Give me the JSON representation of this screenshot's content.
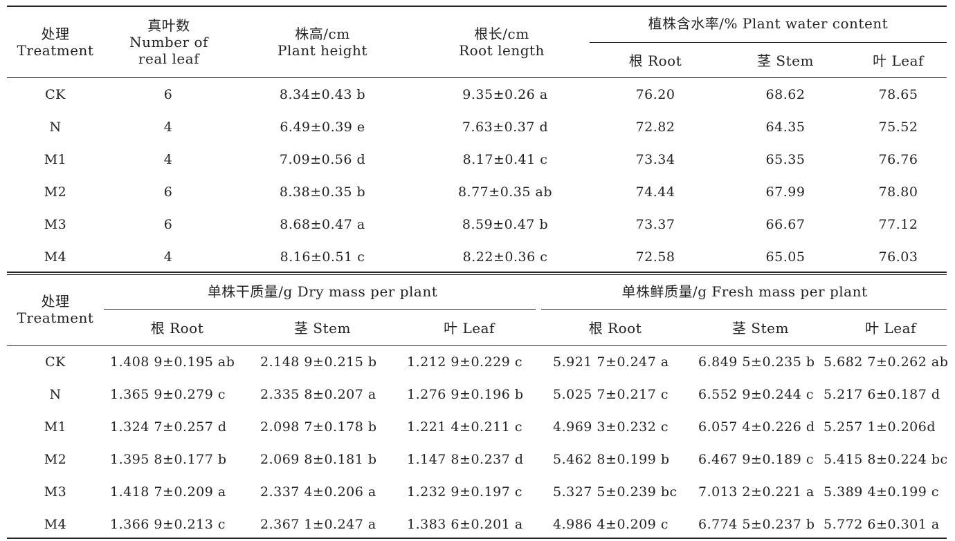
{
  "table1": {
    "headers": {
      "treatment": [
        "处理",
        "Treatment"
      ],
      "leaf_number": [
        "真叶数",
        "Number of",
        "real leaf"
      ],
      "plant_height": [
        "株高/cm",
        "Plant height"
      ],
      "root_length": [
        "根长/cm",
        "Root length"
      ],
      "water_content_group": "植株含水率/% Plant water content",
      "root": "根 Root",
      "stem": "茎 Stem",
      "leaf": "叶 Leaf"
    },
    "rows": [
      {
        "treatment": "CK",
        "leaf_number": "6",
        "plant_height": "8.34±0.43 b",
        "root_length": "9.35±0.26 a",
        "root": "76.20",
        "stem": "68.62",
        "leaf": "78.65"
      },
      {
        "treatment": "N",
        "leaf_number": "4",
        "plant_height": "6.49±0.39 e",
        "root_length": "7.63±0.37 d",
        "root": "72.82",
        "stem": "64.35",
        "leaf": "75.52"
      },
      {
        "treatment": "M1",
        "leaf_number": "4",
        "plant_height": "7.09±0.56 d",
        "root_length": "8.17±0.41 c",
        "root": "73.34",
        "stem": "65.35",
        "leaf": "76.76"
      },
      {
        "treatment": "M2",
        "leaf_number": "6",
        "plant_height": "8.38±0.35 b",
        "root_length": "8.77±0.35 ab",
        "root": "74.44",
        "stem": "67.99",
        "leaf": "78.80"
      },
      {
        "treatment": "M3",
        "leaf_number": "6",
        "plant_height": "8.68±0.47 a",
        "root_length": "8.59±0.47 b",
        "root": "73.37",
        "stem": "66.67",
        "leaf": "77.12"
      },
      {
        "treatment": "M4",
        "leaf_number": "4",
        "plant_height": "8.16±0.51 c",
        "root_length": "8.22±0.36 c",
        "root": "72.58",
        "stem": "65.05",
        "leaf": "76.03"
      }
    ]
  },
  "table2": {
    "headers": {
      "treatment": [
        "处理",
        "Treatment"
      ],
      "dry_group": "单株干质量/g Dry mass per plant",
      "fresh_group": "单株鲜质量/g Fresh mass per plant",
      "root": "根 Root",
      "stem": "茎 Stem",
      "leaf": "叶 Leaf"
    },
    "rows": [
      {
        "treatment": "CK",
        "dry_root": "1.408 9±0.195 ab",
        "dry_stem": "2.148 9±0.215 b",
        "dry_leaf": "1.212 9±0.229 c",
        "fresh_root": "5.921 7±0.247 a",
        "fresh_stem": "6.849 5±0.235 b",
        "fresh_leaf": "5.682 7±0.262 ab"
      },
      {
        "treatment": "N",
        "dry_root": "1.365 9±0.279 c",
        "dry_stem": "2.335 8±0.207 a",
        "dry_leaf": "1.276 9±0.196 b",
        "fresh_root": "5.025 7±0.217 c",
        "fresh_stem": "6.552 9±0.244 c",
        "fresh_leaf": "5.217 6±0.187 d"
      },
      {
        "treatment": "M1",
        "dry_root": "1.324 7±0.257 d",
        "dry_stem": "2.098 7±0.178 b",
        "dry_leaf": "1.221 4±0.211 c",
        "fresh_root": "4.969 3±0.232 c",
        "fresh_stem": "6.057 4±0.226 d",
        "fresh_leaf": "5.257 1±0.206d"
      },
      {
        "treatment": "M2",
        "dry_root": "1.395 8±0.177 b",
        "dry_stem": "2.069 8±0.181 b",
        "dry_leaf": "1.147 8±0.237 d",
        "fresh_root": "5.462 8±0.199 b",
        "fresh_stem": "6.467 9±0.189 c",
        "fresh_leaf": "5.415 8±0.224 bc"
      },
      {
        "treatment": "M3",
        "dry_root": "1.418 7±0.209 a",
        "dry_stem": "2.337 4±0.206 a",
        "dry_leaf": "1.232 9±0.197 c",
        "fresh_root": "5.327 5±0.239 bc",
        "fresh_stem": "7.013 2±0.221 a",
        "fresh_leaf": "5.389 4±0.199 c"
      },
      {
        "treatment": "M4",
        "dry_root": "1.366 9±0.213 c",
        "dry_stem": "2.367 1±0.247 a",
        "dry_leaf": "1.383 6±0.201 a",
        "fresh_root": "4.986 4±0.209 c",
        "fresh_stem": "6.774 5±0.237 b",
        "fresh_leaf": "5.772 6±0.301 a"
      }
    ]
  }
}
